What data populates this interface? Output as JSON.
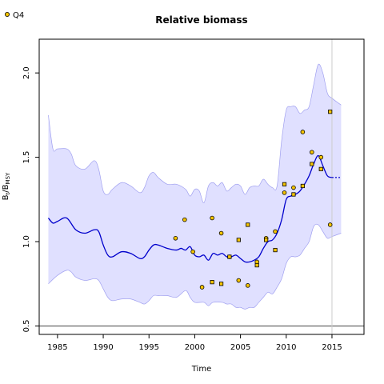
{
  "chart_data": {
    "type": "line",
    "title": "Relative biomass",
    "xlabel": "Time",
    "ylabel": "B_t/B_MSY",
    "ylabel_main": "B",
    "ylabel_sub1": "t",
    "ylabel_slash": "/B",
    "ylabel_sub2": "MSY",
    "xlim": [
      1983,
      2018.5
    ],
    "ylim": [
      0.45,
      2.2
    ],
    "x_ticks": [
      1985,
      1990,
      1995,
      2000,
      2005,
      2010,
      2015
    ],
    "y_ticks": [
      0.5,
      1.0,
      1.5,
      2.0
    ],
    "x_tick_labels": [
      "1985",
      "1990",
      "1995",
      "2000",
      "2005",
      "2010",
      "2015"
    ],
    "y_tick_labels": [
      "0.5",
      "1.0",
      "1.5",
      "2.0"
    ],
    "reference_line_y": 0.5,
    "current_time_line_x": 2015,
    "colors": {
      "line": "#0000cc",
      "band_fill": "#e0e0ff",
      "band_stroke": "#a0a0f0",
      "point_fill": "#f5c400",
      "vline": "#cccccc"
    },
    "legend": {
      "position": "top-left",
      "label": "Q4",
      "marker": "circle"
    },
    "estimate": {
      "x": [
        1984,
        1984.5,
        1985,
        1986,
        1987,
        1988,
        1989,
        1989.5,
        1990,
        1990.5,
        1991,
        1992,
        1993,
        1994,
        1994.5,
        1995,
        1995.5,
        1996,
        1997,
        1998,
        1998.5,
        1999,
        1999.5,
        2000,
        2000.5,
        2001,
        2001.5,
        2002,
        2002.5,
        2003,
        2003.5,
        2004,
        2004.5,
        2005,
        2005.5,
        2006,
        2006.5,
        2007,
        2007.5,
        2008,
        2008.5,
        2009,
        2009.5,
        2010,
        2010.5,
        2011,
        2011.5,
        2012,
        2012.5,
        2013,
        2013.5,
        2014,
        2014.5,
        2015
      ],
      "y": [
        1.14,
        1.11,
        1.12,
        1.14,
        1.07,
        1.05,
        1.07,
        1.06,
        0.98,
        0.92,
        0.91,
        0.94,
        0.93,
        0.9,
        0.91,
        0.95,
        0.98,
        0.98,
        0.96,
        0.95,
        0.96,
        0.95,
        0.97,
        0.92,
        0.91,
        0.92,
        0.89,
        0.93,
        0.92,
        0.93,
        0.91,
        0.91,
        0.92,
        0.9,
        0.88,
        0.88,
        0.89,
        0.91,
        0.96,
        1.0,
        1.01,
        1.05,
        1.13,
        1.25,
        1.27,
        1.28,
        1.3,
        1.34,
        1.39,
        1.46,
        1.51,
        1.45,
        1.39,
        1.38
      ]
    },
    "band_upper": {
      "x": [
        1984,
        1984.5,
        1985,
        1986,
        1986.5,
        1987,
        1988,
        1989,
        1989.5,
        1990,
        1990.5,
        1991,
        1992,
        1993,
        1994,
        1994.5,
        1995,
        1995.5,
        1996,
        1997,
        1998,
        1999,
        1999.5,
        2000,
        2000.5,
        2001,
        2001.5,
        2002,
        2002.5,
        2003,
        2003.5,
        2004,
        2004.5,
        2005,
        2005.5,
        2006,
        2006.5,
        2007,
        2007.5,
        2008,
        2008.5,
        2009,
        2009.5,
        2010,
        2010.5,
        2011,
        2011.5,
        2012,
        2012.5,
        2013,
        2013.5,
        2014,
        2014.5,
        2015,
        2016
      ],
      "y": [
        1.75,
        1.55,
        1.55,
        1.55,
        1.52,
        1.45,
        1.43,
        1.48,
        1.43,
        1.3,
        1.28,
        1.31,
        1.35,
        1.33,
        1.29,
        1.32,
        1.39,
        1.41,
        1.38,
        1.34,
        1.34,
        1.31,
        1.27,
        1.31,
        1.3,
        1.23,
        1.33,
        1.35,
        1.33,
        1.35,
        1.3,
        1.32,
        1.34,
        1.33,
        1.28,
        1.32,
        1.33,
        1.33,
        1.37,
        1.34,
        1.32,
        1.33,
        1.6,
        1.78,
        1.8,
        1.8,
        1.76,
        1.78,
        1.8,
        1.93,
        2.05,
        2.0,
        1.88,
        1.85,
        1.81
      ]
    },
    "band_lower": {
      "x": [
        1984,
        1985,
        1986,
        1986.5,
        1987,
        1988,
        1989,
        1989.5,
        1990,
        1990.5,
        1991,
        1992,
        1993,
        1994,
        1994.5,
        1995,
        1995.5,
        1996,
        1997,
        1998,
        1999,
        1999.5,
        2000,
        2001,
        2001.5,
        2002,
        2003,
        2003.5,
        2004,
        2004.5,
        2005,
        2005.5,
        2006,
        2006.5,
        2007,
        2007.5,
        2008,
        2008.5,
        2009,
        2009.5,
        2010,
        2010.5,
        2011,
        2011.5,
        2012,
        2012.5,
        2013,
        2013.5,
        2014,
        2014.5,
        2015,
        2016
      ],
      "y": [
        0.75,
        0.8,
        0.83,
        0.82,
        0.79,
        0.77,
        0.78,
        0.77,
        0.72,
        0.67,
        0.65,
        0.66,
        0.66,
        0.64,
        0.63,
        0.65,
        0.68,
        0.68,
        0.68,
        0.67,
        0.71,
        0.67,
        0.64,
        0.64,
        0.62,
        0.64,
        0.64,
        0.63,
        0.63,
        0.61,
        0.61,
        0.6,
        0.61,
        0.61,
        0.64,
        0.67,
        0.7,
        0.69,
        0.73,
        0.78,
        0.87,
        0.91,
        0.91,
        0.92,
        0.96,
        1.0,
        1.09,
        1.1,
        1.06,
        1.02,
        1.03,
        1.05
      ]
    },
    "prediction": {
      "x": [
        2015,
        2016
      ],
      "y": [
        1.38,
        1.38
      ]
    },
    "series": [
      {
        "name": "Q4",
        "marker": "circle",
        "x": [
          1997.9,
          1998.9,
          1999.8,
          2000.8,
          2001.9,
          2002.9,
          2003.8,
          2004.8,
          2005.8,
          2006.8,
          2007.8,
          2008.8,
          2009.8,
          2010.8,
          2011.8,
          2012.8,
          2013.8,
          2014.8
        ],
        "y": [
          1.02,
          1.13,
          0.94,
          0.73,
          1.14,
          1.05,
          0.91,
          0.77,
          0.74,
          0.88,
          1.02,
          1.06,
          1.29,
          1.32,
          1.65,
          1.53,
          1.5,
          1.1
        ]
      },
      {
        "marker": "square",
        "x": [
          2001.9,
          2002.9,
          2003.8,
          2004.8,
          2005.8,
          2006.8,
          2007.8,
          2008.8,
          2009.8,
          2010.8,
          2011.8,
          2012.8,
          2013.8,
          2014.8
        ],
        "y": [
          0.76,
          0.75,
          0.91,
          1.01,
          1.1,
          0.86,
          1.01,
          0.95,
          1.34,
          1.28,
          1.33,
          1.46,
          1.43,
          1.77
        ]
      }
    ]
  }
}
